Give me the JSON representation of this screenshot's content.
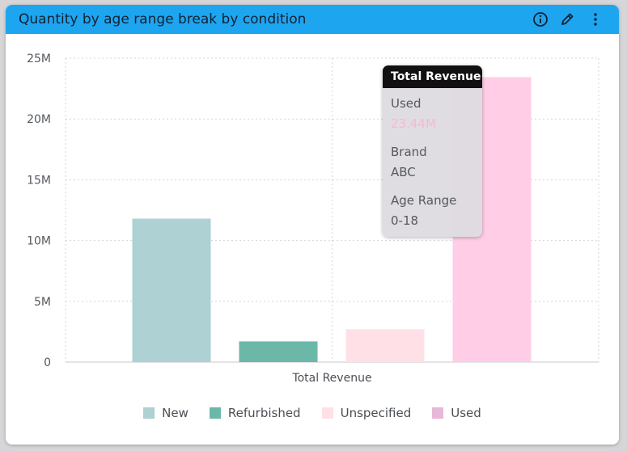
{
  "widget": {
    "title": "Quantity by age range break by condition",
    "icons": [
      "info-icon",
      "pencil-icon",
      "more-vertical-icon"
    ]
  },
  "colors": {
    "header": "#1ea5f0",
    "New": "#aed1d3",
    "Refurbished": "#6bb8a8",
    "Unspecified": "#ffe0e6",
    "Used": "#ffcde6",
    "UsedLegend": "#e8b8d8"
  },
  "chart_data": {
    "type": "bar",
    "categories": [
      "Total Revenue"
    ],
    "series": [
      {
        "name": "New",
        "values": [
          11.8
        ]
      },
      {
        "name": "Refurbished",
        "values": [
          1.7
        ]
      },
      {
        "name": "Unspecified",
        "values": [
          2.7
        ]
      },
      {
        "name": "Used",
        "values": [
          23.44
        ]
      }
    ],
    "ylim": [
      0,
      25
    ],
    "yticks": [
      "0",
      "5M",
      "10M",
      "15M",
      "20M",
      "25M"
    ],
    "ytick_values": [
      0,
      5,
      10,
      15,
      20,
      25
    ],
    "grid": true,
    "legend_position": "bottom"
  },
  "tooltip": {
    "title": "Total Revenue",
    "series_name": "Used",
    "value": "23.44M",
    "brand_label": "Brand",
    "brand_value": "ABC",
    "age_label": "Age Range",
    "age_value": "0-18"
  }
}
